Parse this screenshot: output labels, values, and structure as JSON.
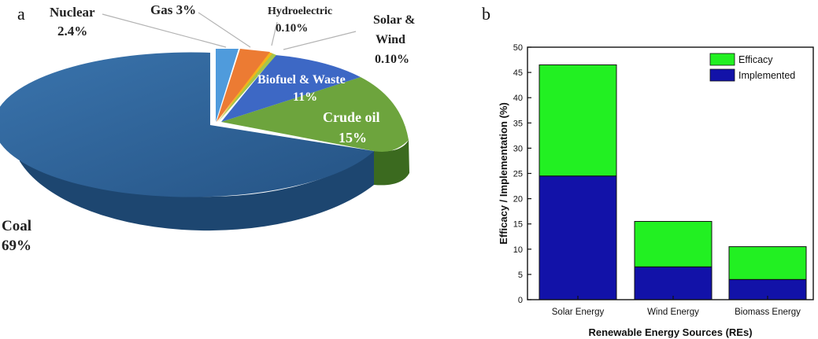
{
  "panels": {
    "a": "a",
    "b": "b"
  },
  "colors": {
    "nuclear": "#4f9bdc",
    "gas": "#ec7b33",
    "hydro": "#f3b519",
    "solar_wind": "#a6c64a",
    "biofuel": "#3d68c5",
    "crude_oil": "#6da43d",
    "coal": "#2e5f90",
    "efficacy": "#22f022",
    "implemented": "#1212a8"
  },
  "chart_data": [
    {
      "type": "pie",
      "slices": [
        {
          "label": "Nuclear",
          "value_label": "2.4%",
          "value": 2.4,
          "color_key": "nuclear"
        },
        {
          "label": "Gas 3%",
          "value_label": "",
          "value": 3,
          "color_key": "gas"
        },
        {
          "label": "Hydroelectric",
          "value_label": "0.10%",
          "value": 0.1,
          "color_key": "hydro"
        },
        {
          "label": "Solar & Wind",
          "value_label": "0.10%",
          "value": 0.1,
          "color_key": "solar_wind"
        },
        {
          "label": "Biofuel & Waste",
          "value_label": "11%",
          "value": 11,
          "color_key": "biofuel"
        },
        {
          "label": "Crude oil",
          "value_label": "15%",
          "value": 15,
          "color_key": "crude_oil"
        },
        {
          "label": "Coal",
          "value_label": "69%",
          "value": 69,
          "color_key": "coal"
        }
      ]
    },
    {
      "type": "bar",
      "stacked": true,
      "categories": [
        "Solar Energy",
        "Wind Energy",
        "Biomass Energy"
      ],
      "series": [
        {
          "name": "Implemented",
          "values": [
            24.5,
            6.5,
            4
          ],
          "color_key": "implemented"
        },
        {
          "name": "Efficacy",
          "values": [
            22,
            9,
            6.5
          ],
          "color_key": "efficacy"
        }
      ],
      "legend_order": [
        "Efficacy",
        "Implemented"
      ],
      "legend_position": "top-right",
      "xlabel": "Renewable Energy Sources (REs)",
      "ylabel": "Efficacy / Implementation (%)",
      "ylim": [
        0,
        50
      ],
      "yticks": [
        "0",
        "5",
        "10",
        "15",
        "20",
        "25",
        "30",
        "35",
        "40",
        "45",
        "50"
      ],
      "grid": false
    }
  ]
}
